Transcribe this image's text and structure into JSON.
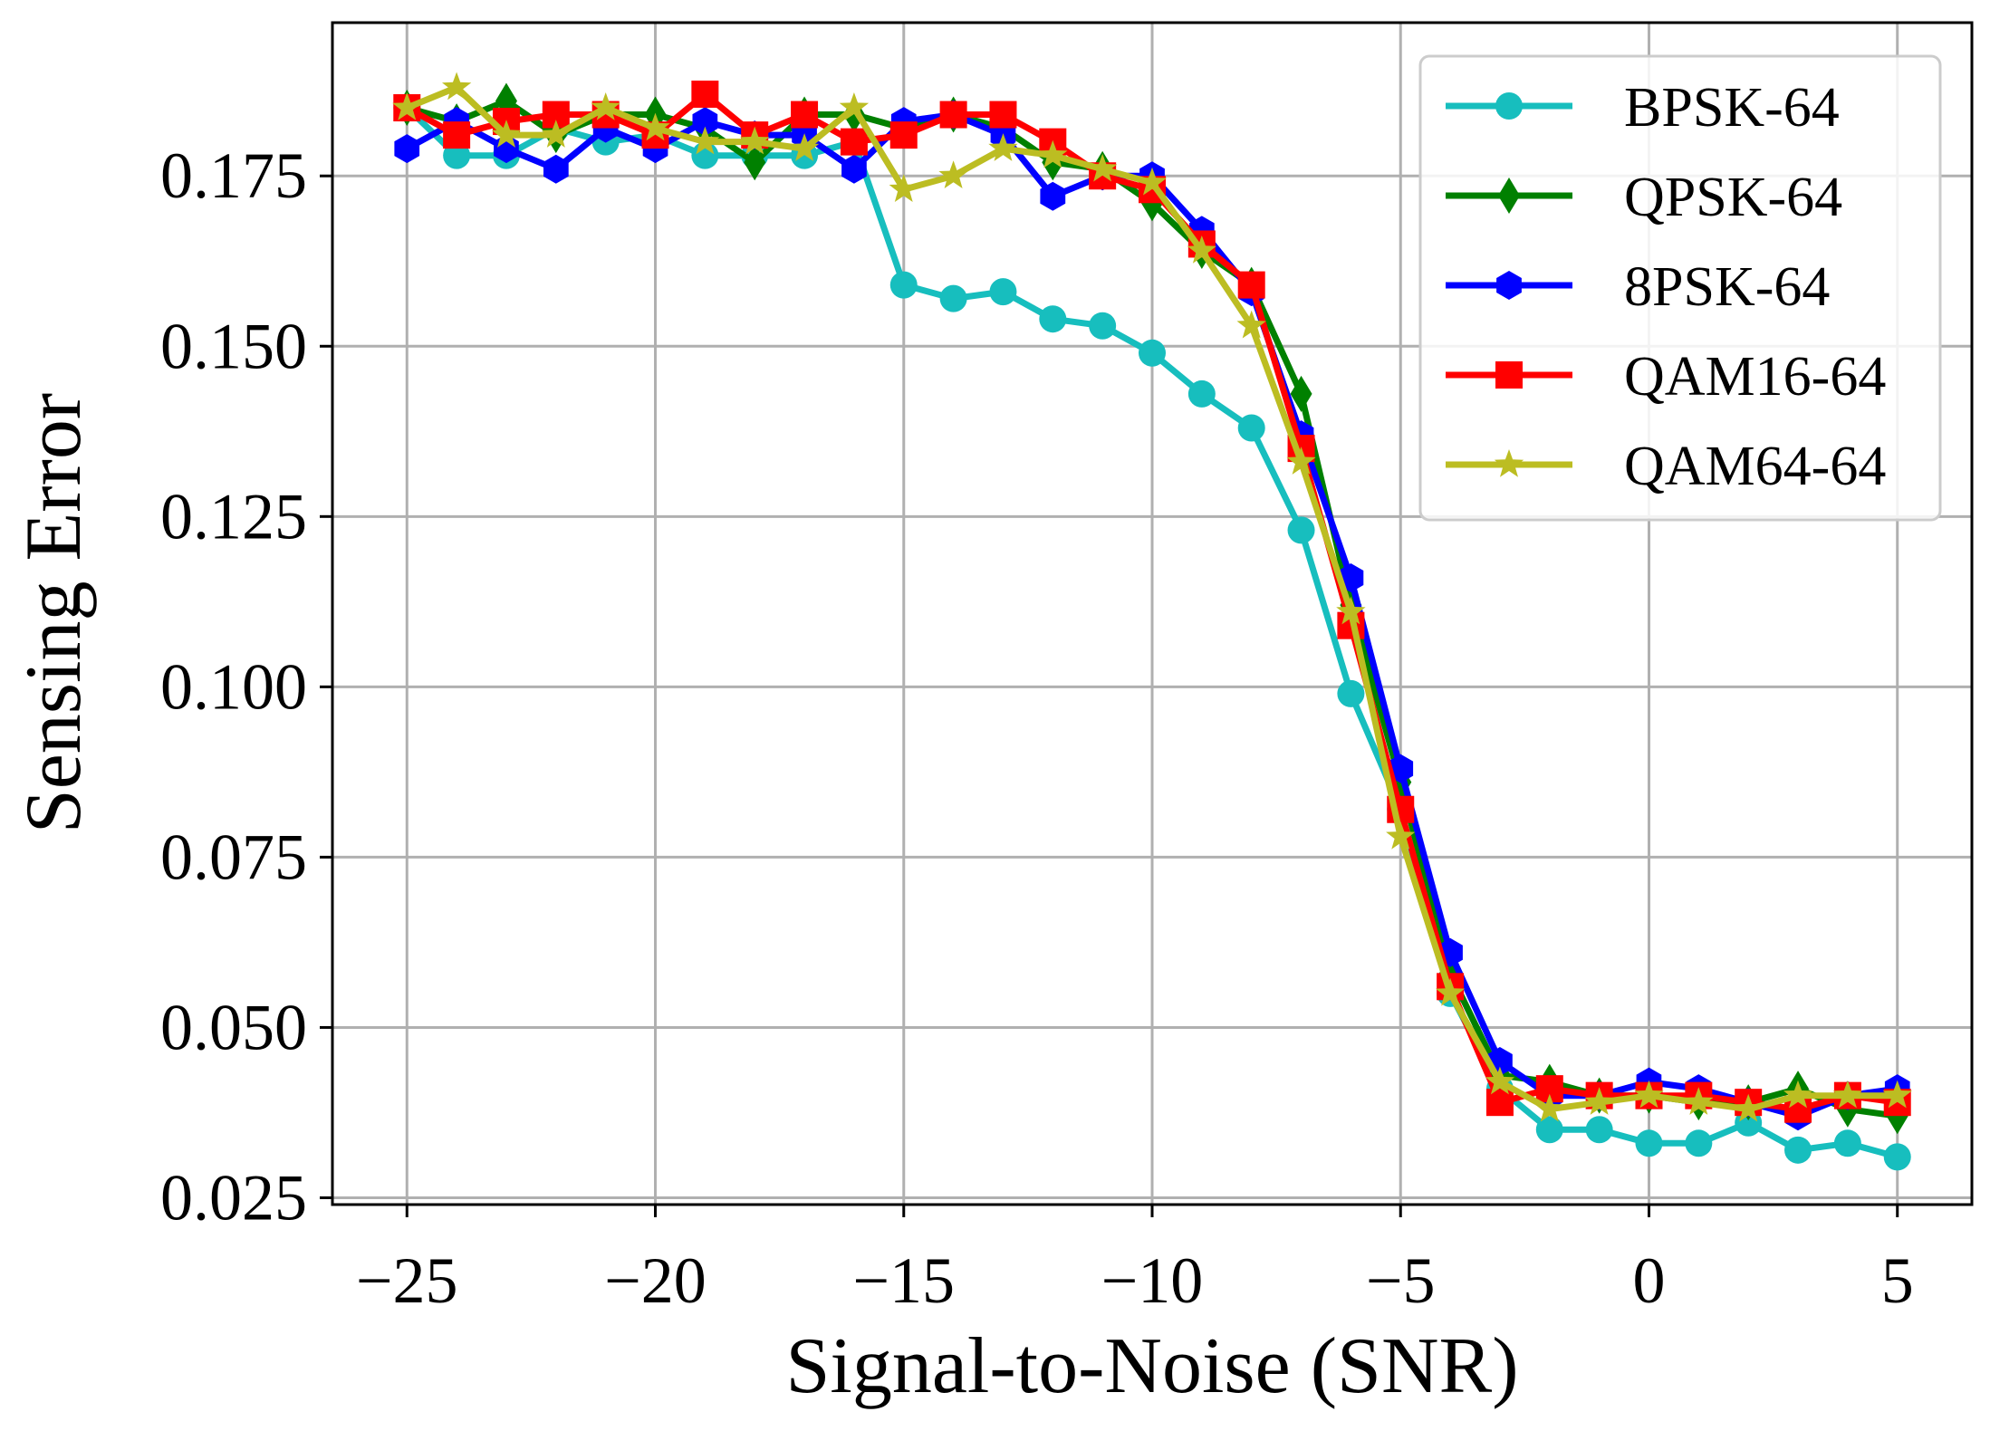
{
  "chart_data": {
    "type": "line",
    "title": "",
    "xlabel": "Signal-to-Noise (SNR)",
    "ylabel": "Sensing Error",
    "xlim": [
      -26.5,
      6.5
    ],
    "ylim": [
      0.024,
      0.1975
    ],
    "xticks": [
      -25,
      -20,
      -15,
      -10,
      -5,
      0,
      5
    ],
    "xtick_labels": [
      "−25",
      "−20",
      "−15",
      "−10",
      "−5",
      "0",
      "5"
    ],
    "yticks": [
      0.025,
      0.05,
      0.075,
      0.1,
      0.125,
      0.15,
      0.175
    ],
    "ytick_labels": [
      "0.025",
      "0.050",
      "0.075",
      "0.100",
      "0.125",
      "0.150",
      "0.175"
    ],
    "grid": true,
    "legend_position": "top-right",
    "x": [
      -25,
      -24,
      -23,
      -22,
      -21,
      -20,
      -19,
      -18,
      -17,
      -16,
      -15,
      -14,
      -13,
      -12,
      -11,
      -10,
      -9,
      -8,
      -7,
      -6,
      -5,
      -4,
      -3,
      -2,
      -1,
      0,
      1,
      2,
      3,
      4,
      5
    ],
    "series": [
      {
        "name": "BPSK-64",
        "color": "#17bebe",
        "marker": "circle",
        "values": [
          0.185,
          0.178,
          0.178,
          0.182,
          0.18,
          0.181,
          0.178,
          0.178,
          0.178,
          0.18,
          0.159,
          0.157,
          0.158,
          0.154,
          0.153,
          0.149,
          0.143,
          0.138,
          0.123,
          0.099,
          0.082,
          0.055,
          0.041,
          0.035,
          0.035,
          0.033,
          0.033,
          0.036,
          0.032,
          0.033,
          0.031
        ]
      },
      {
        "name": "QPSK-64",
        "color": "#008000",
        "marker": "thin_diamond",
        "values": [
          0.185,
          0.183,
          0.186,
          0.181,
          0.184,
          0.184,
          0.182,
          0.177,
          0.184,
          0.184,
          0.182,
          0.184,
          0.182,
          0.177,
          0.176,
          0.171,
          0.164,
          0.159,
          0.143,
          0.112,
          0.086,
          0.058,
          0.043,
          0.042,
          0.04,
          0.04,
          0.039,
          0.039,
          0.041,
          0.038,
          0.037
        ]
      },
      {
        "name": "8PSK-64",
        "color": "#0000ff",
        "marker": "hexagon",
        "values": [
          0.179,
          0.183,
          0.179,
          0.176,
          0.182,
          0.179,
          0.183,
          0.181,
          0.181,
          0.176,
          0.183,
          0.184,
          0.181,
          0.172,
          0.175,
          0.175,
          0.167,
          0.158,
          0.137,
          0.116,
          0.088,
          0.061,
          0.045,
          0.04,
          0.04,
          0.042,
          0.041,
          0.039,
          0.037,
          0.04,
          0.041
        ]
      },
      {
        "name": "QAM16-64",
        "color": "#ff0000",
        "marker": "square",
        "values": [
          0.185,
          0.181,
          0.183,
          0.184,
          0.184,
          0.181,
          0.187,
          0.181,
          0.184,
          0.18,
          0.181,
          0.184,
          0.184,
          0.18,
          0.175,
          0.173,
          0.165,
          0.159,
          0.135,
          0.109,
          0.082,
          0.056,
          0.039,
          0.041,
          0.04,
          0.04,
          0.04,
          0.039,
          0.038,
          0.04,
          0.039
        ]
      },
      {
        "name": "QAM64-64",
        "color": "#bcbd22",
        "marker": "star",
        "values": [
          0.185,
          0.188,
          0.181,
          0.181,
          0.185,
          0.182,
          0.18,
          0.18,
          0.179,
          0.185,
          0.173,
          0.175,
          0.179,
          0.178,
          0.176,
          0.174,
          0.164,
          0.153,
          0.133,
          0.111,
          0.078,
          0.055,
          0.042,
          0.038,
          0.039,
          0.04,
          0.039,
          0.038,
          0.04,
          0.04,
          0.04
        ]
      }
    ]
  }
}
